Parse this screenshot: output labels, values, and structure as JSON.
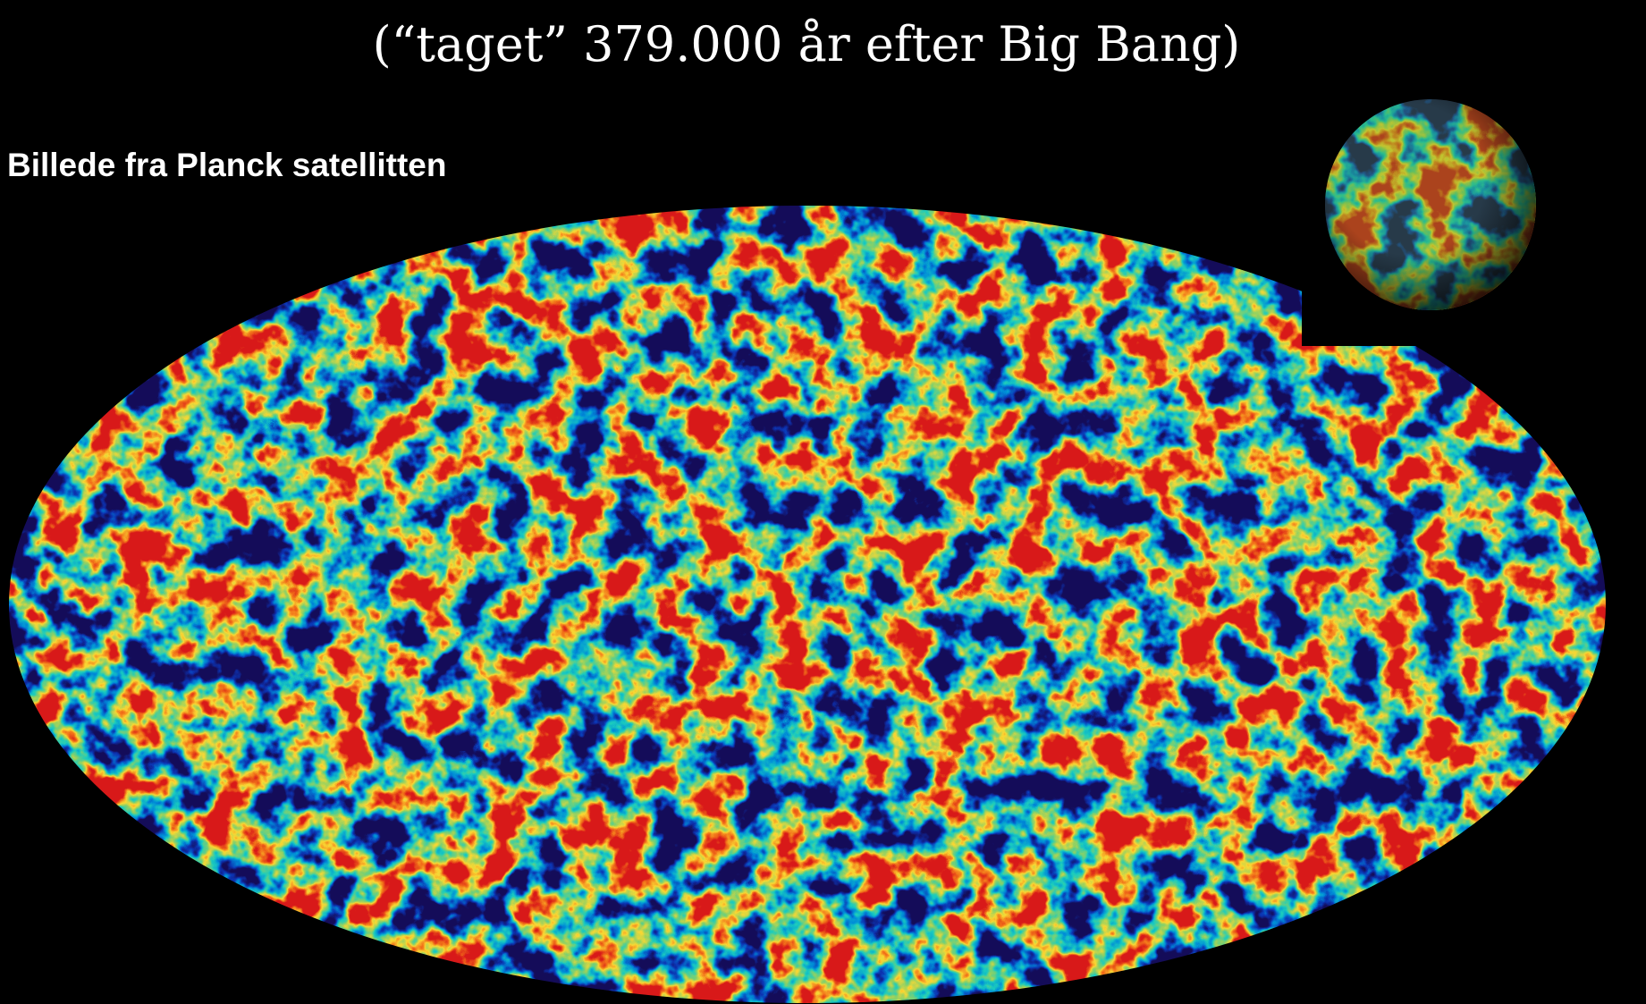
{
  "title": "(“taget” 379.000 år efter Big Bang)",
  "subtitle": "Billede fra Planck satellitten"
}
